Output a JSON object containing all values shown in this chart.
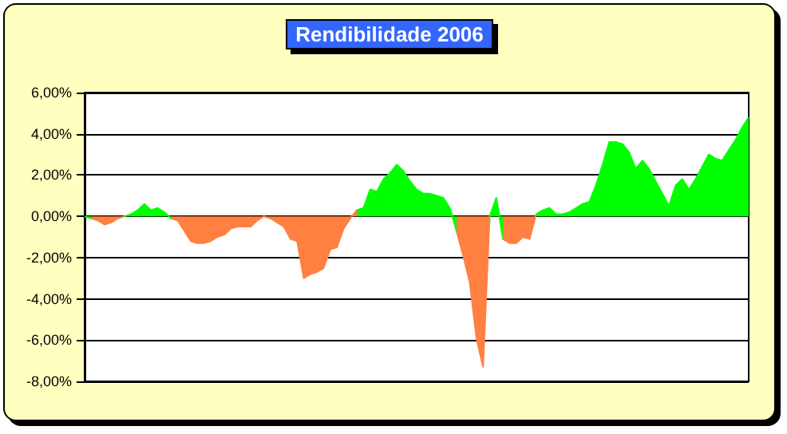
{
  "chart_data": {
    "type": "area",
    "title": "Rendibilidade 2006",
    "categories": [
      null,
      null,
      null,
      null,
      null,
      null,
      null,
      null,
      null,
      null,
      null,
      null,
      null,
      null,
      null,
      null,
      null,
      null,
      null,
      null,
      null,
      null,
      null,
      null,
      null,
      null,
      null,
      null,
      null,
      null,
      null,
      null,
      null,
      null,
      null,
      null,
      null,
      null,
      null,
      null,
      null,
      null,
      null,
      null,
      null,
      null,
      null,
      null,
      null,
      null,
      null,
      null,
      null,
      null,
      null,
      null,
      null,
      null,
      null,
      null,
      null,
      null,
      null,
      null,
      null,
      null,
      null,
      null,
      null,
      null,
      null,
      null,
      null,
      null,
      null,
      null,
      null,
      null,
      null,
      null,
      null,
      null,
      null,
      null,
      null,
      null,
      null,
      null,
      null,
      null,
      null,
      null,
      null,
      null,
      null,
      null,
      null,
      null,
      null,
      null,
      null
    ],
    "values": [
      0,
      -0.1,
      -0.2,
      -0.4,
      -0.3,
      -0.1,
      0,
      0.1,
      0.3,
      0.6,
      0.3,
      0.4,
      0.2,
      -0.1,
      -0.2,
      -0.7,
      -1.2,
      -1.3,
      -1.3,
      -1.2,
      -1.0,
      -0.9,
      -0.6,
      -0.5,
      -0.5,
      -0.5,
      -0.2,
      0,
      -0.1,
      -0.3,
      -0.5,
      -1.1,
      -1.2,
      -3.0,
      -2.8,
      -2.7,
      -2.5,
      -1.6,
      -1.5,
      -0.6,
      -0.1,
      0.3,
      0.4,
      1.3,
      1.2,
      1.8,
      2.1,
      2.5,
      2.2,
      1.7,
      1.3,
      1.1,
      1.1,
      1.0,
      0.9,
      0.4,
      -0.7,
      -1.9,
      -3.2,
      -5.9,
      -7.3,
      0,
      0.9,
      -1.1,
      -1.3,
      -1.3,
      -1.0,
      -1.1,
      0.1,
      0.3,
      0.4,
      0.1,
      0.1,
      0.2,
      0.4,
      0.6,
      0.7,
      1.5,
      2.5,
      3.6,
      3.6,
      3.5,
      3.1,
      2.3,
      2.7,
      2.3,
      1.7,
      1.1,
      0.5,
      1.5,
      1.8,
      1.3,
      1.8,
      2.4,
      3.0,
      2.8,
      2.7,
      3.2,
      3.7,
      4.3,
      4.8
    ],
    "colors": [
      "#00ff00",
      "#ff8040",
      "#ff8040",
      "#ff8040",
      "#ff8040",
      "#ff8040",
      "#00ff00",
      "#00ff00",
      "#00ff00",
      "#00ff00",
      "#00ff00",
      "#00ff00",
      "#00ff00",
      "#ff8040",
      "#ff8040",
      "#ff8040",
      "#ff8040",
      "#ff8040",
      "#ff8040",
      "#ff8040",
      "#ff8040",
      "#ff8040",
      "#ff8040",
      "#ff8040",
      "#ff8040",
      "#ff8040",
      "#ff8040",
      "#ff8040",
      "#ff8040",
      "#ff8040",
      "#ff8040",
      "#ff8040",
      "#ff8040",
      "#ff8040",
      "#ff8040",
      "#ff8040",
      "#ff8040",
      "#ff8040",
      "#ff8040",
      "#ff8040",
      "#ff8040",
      "#00ff00",
      "#00ff00",
      "#00ff00",
      "#00ff00",
      "#00ff00",
      "#00ff00",
      "#00ff00",
      "#00ff00",
      "#00ff00",
      "#00ff00",
      "#00ff00",
      "#00ff00",
      "#00ff00",
      "#00ff00",
      "#00ff00",
      "#ff8040",
      "#ff8040",
      "#ff8040",
      "#ff8040",
      "#ff8040",
      "#00ff00",
      "#00ff00",
      "#ff8040",
      "#ff8040",
      "#ff8040",
      "#ff8040",
      "#ff8040",
      "#00ff00",
      "#00ff00",
      "#00ff00",
      "#00ff00",
      "#00ff00",
      "#00ff00",
      "#00ff00",
      "#00ff00",
      "#00ff00",
      "#00ff00",
      "#00ff00",
      "#00ff00",
      "#00ff00",
      "#00ff00",
      "#00ff00",
      "#00ff00",
      "#00ff00",
      "#00ff00",
      "#00ff00",
      "#00ff00",
      "#00ff00",
      "#00ff00",
      "#00ff00",
      "#00ff00",
      "#00ff00",
      "#00ff00",
      "#00ff00",
      "#00ff00",
      "#00ff00",
      "#00ff00",
      "#00ff00",
      "#00ff00",
      "#00ff00"
    ],
    "ylim": [
      -8,
      6
    ],
    "yticks": [
      {
        "value": -8,
        "label": "-8,00%"
      },
      {
        "value": -6,
        "label": "-6,00%"
      },
      {
        "value": -4,
        "label": "-4,00%"
      },
      {
        "value": -2,
        "label": "-2,00%"
      },
      {
        "value": 0,
        "label": "0,00%"
      },
      {
        "value": 2,
        "label": "2,00%"
      },
      {
        "value": 4,
        "label": "4,00%"
      },
      {
        "value": 6,
        "label": "6,00%"
      }
    ],
    "grid": "y",
    "tick_labels": "y"
  }
}
